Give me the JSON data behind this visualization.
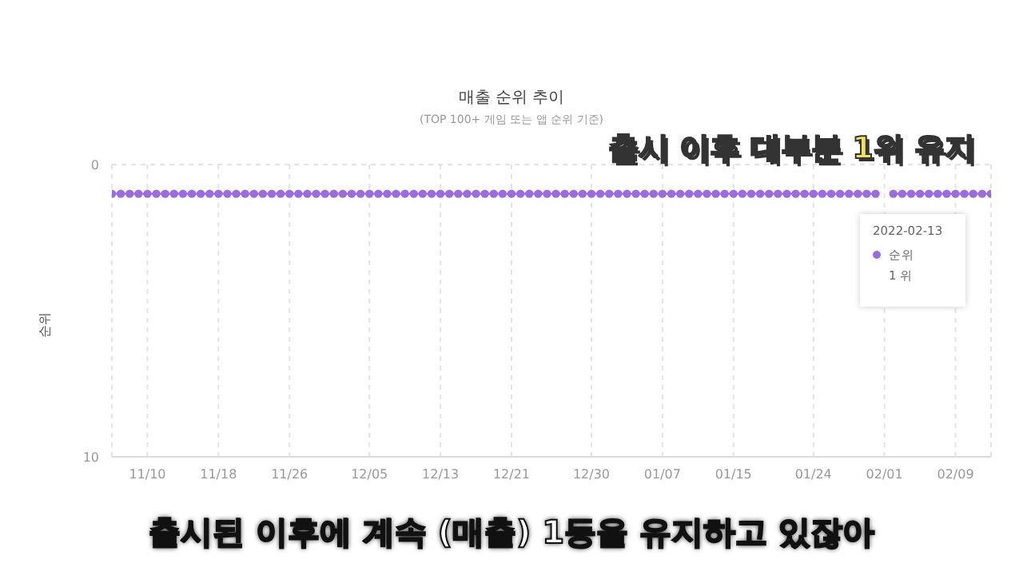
{
  "chart_data": {
    "type": "line",
    "title": "매출 순위 추이",
    "subtitle": "(TOP 100+ 게임 또는 앱 순위 기준)",
    "ylabel": "순위",
    "x": [
      "2021-11-06",
      "2021-11-07",
      "2021-11-08",
      "2021-11-09",
      "2021-11-10",
      "2021-11-11",
      "2021-11-12",
      "2021-11-13",
      "2021-11-14",
      "2021-11-15",
      "2021-11-16",
      "2021-11-17",
      "2021-11-18",
      "2021-11-19",
      "2021-11-20",
      "2021-11-21",
      "2021-11-22",
      "2021-11-23",
      "2021-11-24",
      "2021-11-25",
      "2021-11-26",
      "2021-11-27",
      "2021-11-28",
      "2021-11-29",
      "2021-11-30",
      "2021-12-01",
      "2021-12-02",
      "2021-12-03",
      "2021-12-04",
      "2021-12-05",
      "2021-12-06",
      "2021-12-07",
      "2021-12-08",
      "2021-12-09",
      "2021-12-10",
      "2021-12-11",
      "2021-12-12",
      "2021-12-13",
      "2021-12-14",
      "2021-12-15",
      "2021-12-16",
      "2021-12-17",
      "2021-12-18",
      "2021-12-19",
      "2021-12-20",
      "2021-12-21",
      "2021-12-22",
      "2021-12-23",
      "2021-12-24",
      "2021-12-25",
      "2021-12-26",
      "2021-12-27",
      "2021-12-28",
      "2021-12-29",
      "2021-12-30",
      "2021-12-31",
      "2022-01-01",
      "2022-01-02",
      "2022-01-03",
      "2022-01-04",
      "2022-01-05",
      "2022-01-06",
      "2022-01-07",
      "2022-01-08",
      "2022-01-09",
      "2022-01-10",
      "2022-01-11",
      "2022-01-12",
      "2022-01-13",
      "2022-01-14",
      "2022-01-15",
      "2022-01-16",
      "2022-01-17",
      "2022-01-18",
      "2022-01-19",
      "2022-01-20",
      "2022-01-21",
      "2022-01-22",
      "2022-01-23",
      "2022-01-24",
      "2022-01-25",
      "2022-01-26",
      "2022-01-27",
      "2022-01-28",
      "2022-01-29",
      "2022-01-30",
      "2022-01-31",
      "2022-02-01",
      "2022-02-02",
      "2022-02-03",
      "2022-02-04",
      "2022-02-05",
      "2022-02-06",
      "2022-02-07",
      "2022-02-08",
      "2022-02-09",
      "2022-02-10",
      "2022-02-11",
      "2022-02-12",
      "2022-02-13"
    ],
    "series": [
      {
        "name": "순위",
        "color": "#9b6be0",
        "values": [
          1,
          1,
          1,
          1,
          1,
          1,
          1,
          1,
          1,
          1,
          1,
          1,
          1,
          1,
          1,
          1,
          1,
          1,
          1,
          1,
          1,
          1,
          1,
          1,
          1,
          1,
          1,
          1,
          1,
          1,
          1,
          1,
          1,
          1,
          1,
          1,
          1,
          1,
          1,
          1,
          1,
          1,
          1,
          1,
          1,
          1,
          1,
          1,
          1,
          1,
          1,
          1,
          1,
          1,
          1,
          1,
          1,
          1,
          1,
          1,
          1,
          1,
          1,
          1,
          1,
          1,
          1,
          1,
          1,
          1,
          1,
          1,
          1,
          1,
          1,
          1,
          1,
          1,
          1,
          1,
          1,
          1,
          1,
          1,
          1,
          1,
          1,
          null,
          1,
          1,
          1,
          1,
          1,
          1,
          1,
          1,
          1,
          1,
          1,
          1
        ]
      }
    ],
    "xlim": [
      "2021-11-06",
      "2022-02-13"
    ],
    "xticks": [
      {
        "value": "2021-11-10",
        "label": "11/10"
      },
      {
        "value": "2021-11-18",
        "label": "11/18"
      },
      {
        "value": "2021-11-26",
        "label": "11/26"
      },
      {
        "value": "2021-12-05",
        "label": "12/05"
      },
      {
        "value": "2021-12-13",
        "label": "12/13"
      },
      {
        "value": "2021-12-21",
        "label": "12/21"
      },
      {
        "value": "2021-12-30",
        "label": "12/30"
      },
      {
        "value": "2022-01-07",
        "label": "01/07"
      },
      {
        "value": "2022-01-15",
        "label": "01/15"
      },
      {
        "value": "2022-01-24",
        "label": "01/24"
      },
      {
        "value": "2022-02-01",
        "label": "02/01"
      },
      {
        "value": "2022-02-09",
        "label": "02/09"
      }
    ],
    "ylim": [
      10,
      0
    ],
    "yticks": [
      0,
      10
    ],
    "grid": true,
    "legend": "right",
    "marker": "circle",
    "line_style": "solid",
    "annotations": [
      "출시 이후 대부분 1위 유지",
      "2022-02-13",
      "1 위",
      "출시된 이후에 계속 (매출) 1등을 유지하고 있잖아"
    ]
  }
}
